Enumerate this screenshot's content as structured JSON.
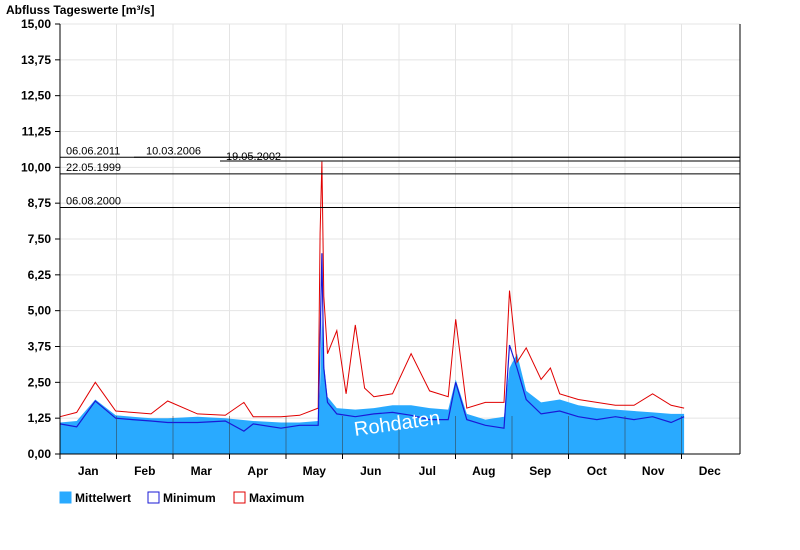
{
  "chart_data": {
    "type": "area",
    "title": "Abfluss Tageswerte [m³/s]",
    "ylim": [
      0,
      15.0
    ],
    "y_ticks": [
      "0,00",
      "1,25",
      "2,50",
      "3,75",
      "5,00",
      "6,25",
      "7,50",
      "8,75",
      "10,00",
      "11,25",
      "12,50",
      "13,75",
      "15,00"
    ],
    "months": [
      "Jan",
      "Feb",
      "Mar",
      "Apr",
      "May",
      "Jun",
      "Jul",
      "Aug",
      "Sep",
      "Oct",
      "Nov",
      "Dec"
    ],
    "grid": true,
    "legend_position": "bottom-left",
    "legend": [
      {
        "label": "Mittelwert",
        "color": "#29aaff"
      },
      {
        "label": "Minimum",
        "color": "#1a1ad6"
      },
      {
        "label": "Maximum",
        "color": "#e00000"
      }
    ],
    "watermark": "Rohdaten",
    "reference_lines": [
      {
        "label": "06.06.2011",
        "value": 10.35
      },
      {
        "label": "10.03.2006",
        "value": 10.35
      },
      {
        "label": "19.05.2002",
        "value": 10.22
      },
      {
        "label": "22.05.1999",
        "value": 9.77
      },
      {
        "label": "06.08.2000",
        "value": 8.6
      }
    ],
    "x_unit": "day of year",
    "series": [
      {
        "name": "Mittelwert",
        "color": "#29aaff",
        "x": [
          1,
          10,
          20,
          31,
          40,
          50,
          59,
          75,
          90,
          105,
          120,
          130,
          140,
          141,
          142,
          143,
          145,
          150,
          160,
          170,
          180,
          190,
          200,
          210,
          214,
          220,
          230,
          240,
          243,
          247,
          252,
          260,
          270,
          280,
          290,
          300,
          310,
          320,
          330,
          337
        ],
        "y": [
          1.1,
          1.15,
          1.9,
          1.35,
          1.3,
          1.25,
          1.25,
          1.3,
          1.25,
          1.15,
          1.1,
          1.1,
          1.15,
          2.4,
          4.8,
          3.2,
          2.0,
          1.6,
          1.55,
          1.6,
          1.7,
          1.7,
          1.6,
          1.55,
          2.6,
          1.4,
          1.2,
          1.3,
          3.0,
          3.5,
          2.2,
          1.8,
          1.9,
          1.7,
          1.6,
          1.55,
          1.5,
          1.45,
          1.4,
          1.4
        ]
      },
      {
        "name": "Minimum",
        "color": "#1a1ad6",
        "x": [
          1,
          10,
          20,
          31,
          40,
          50,
          59,
          75,
          90,
          100,
          105,
          120,
          130,
          140,
          141,
          142,
          143,
          145,
          150,
          160,
          170,
          180,
          190,
          200,
          210,
          214,
          220,
          230,
          240,
          243,
          247,
          252,
          260,
          270,
          280,
          290,
          300,
          310,
          320,
          330,
          337
        ],
        "y": [
          1.05,
          0.95,
          1.85,
          1.25,
          1.2,
          1.15,
          1.1,
          1.1,
          1.15,
          0.8,
          1.05,
          0.9,
          1.0,
          1.0,
          4.0,
          7.0,
          3.0,
          1.8,
          1.4,
          1.3,
          1.4,
          1.45,
          1.35,
          1.2,
          1.2,
          2.5,
          1.2,
          1.0,
          0.9,
          3.8,
          3.0,
          1.9,
          1.4,
          1.5,
          1.3,
          1.2,
          1.3,
          1.2,
          1.3,
          1.1,
          1.3
        ]
      },
      {
        "name": "Maximum",
        "color": "#e00000",
        "x": [
          1,
          10,
          20,
          31,
          40,
          50,
          59,
          75,
          90,
          100,
          105,
          120,
          130,
          140,
          141,
          142,
          143,
          145,
          150,
          155,
          160,
          165,
          170,
          180,
          190,
          200,
          210,
          214,
          220,
          230,
          240,
          243,
          247,
          252,
          260,
          265,
          270,
          280,
          290,
          300,
          310,
          320,
          330,
          337
        ],
        "y": [
          1.3,
          1.45,
          2.5,
          1.5,
          1.45,
          1.4,
          1.85,
          1.4,
          1.35,
          1.8,
          1.3,
          1.3,
          1.35,
          1.6,
          7.7,
          10.2,
          5.5,
          3.5,
          4.3,
          2.1,
          4.5,
          2.3,
          2.0,
          2.1,
          3.5,
          2.2,
          2.0,
          4.7,
          1.6,
          1.8,
          1.8,
          5.7,
          3.2,
          3.7,
          2.6,
          3.0,
          2.1,
          1.9,
          1.8,
          1.7,
          1.7,
          2.1,
          1.7,
          1.6
        ]
      }
    ]
  }
}
